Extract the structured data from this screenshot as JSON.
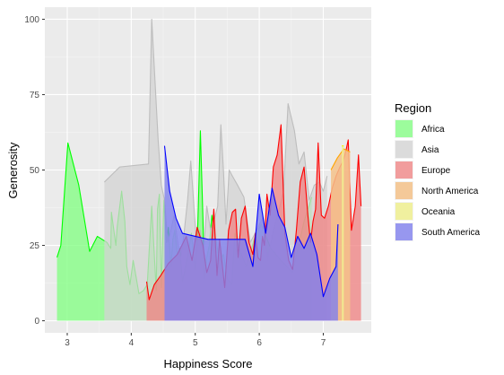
{
  "chart_data": {
    "type": "area",
    "xlabel": "Happiness Score",
    "ylabel": "Generosity",
    "xlim": [
      2.65,
      7.75
    ],
    "ylim": [
      -4,
      104
    ],
    "xticks": [
      3,
      4,
      5,
      6,
      7
    ],
    "yticks": [
      0,
      25,
      50,
      75,
      100
    ],
    "grid": true,
    "legend": {
      "title": "Region",
      "position": "right"
    },
    "series": [
      {
        "name": "Africa",
        "line_color": "#00ff00",
        "fill_color": "#7fff7f",
        "fill_opacity": 0.75,
        "x": [
          2.84,
          2.9,
          3.01,
          3.18,
          3.35,
          3.47,
          3.62,
          3.68,
          3.69,
          3.76,
          3.78,
          3.85,
          3.9,
          3.93,
          3.98,
          4.03,
          4.08,
          4.12,
          4.19,
          4.25,
          4.32,
          4.39,
          4.41,
          4.44,
          4.47,
          4.51,
          4.55,
          4.58,
          4.62,
          4.65,
          4.68,
          4.72,
          4.76,
          4.8,
          4.87,
          4.94,
          5.0,
          5.04,
          5.08,
          5.12,
          5.14,
          5.17,
          5.22,
          5.26,
          5.32,
          5.38,
          5.44,
          5.5,
          5.57,
          5.62,
          5.7,
          5.8,
          5.92,
          6.03,
          6.18,
          6.34,
          6.52,
          6.7,
          6.82
        ],
        "y": [
          21,
          25,
          59,
          45,
          23,
          28,
          26,
          24,
          36,
          25,
          31,
          43,
          33,
          18,
          12,
          20,
          14,
          9,
          10,
          12,
          38,
          10,
          37,
          42,
          11,
          40,
          26,
          31,
          18,
          27,
          30,
          22,
          24,
          13,
          20,
          29,
          17,
          32,
          63,
          34,
          14,
          20,
          25,
          35,
          27,
          20,
          22,
          14,
          12,
          29,
          23,
          18,
          27,
          32,
          24,
          20,
          16,
          33,
          41
        ]
      },
      {
        "name": "Asia",
        "line_color": "#bdbdbd",
        "fill_color": "#d3d3d3",
        "fill_opacity": 0.75,
        "x": [
          3.58,
          3.82,
          4.27,
          4.32,
          4.37,
          4.42,
          4.47,
          4.52,
          4.57,
          4.62,
          4.67,
          4.72,
          4.77,
          4.82,
          4.88,
          4.93,
          4.98,
          5.03,
          5.08,
          5.12,
          5.18,
          5.24,
          5.29,
          5.35,
          5.4,
          5.44,
          5.48,
          5.53,
          5.58,
          5.66,
          5.76,
          5.86,
          5.96,
          6.05,
          6.13,
          6.22,
          6.3,
          6.38,
          6.45,
          6.55,
          6.62,
          6.7,
          6.78,
          6.86,
          6.94,
          7.0,
          7.06
        ],
        "y": [
          46,
          51,
          52,
          100,
          80,
          60,
          45,
          40,
          26,
          30,
          35,
          27,
          20,
          28,
          40,
          53,
          38,
          22,
          30,
          20,
          38,
          30,
          33,
          38,
          65,
          50,
          32,
          50,
          48,
          45,
          41,
          26,
          30,
          34,
          20,
          30,
          36,
          43,
          72,
          63,
          52,
          56,
          40,
          45,
          46,
          43,
          48
        ]
      },
      {
        "name": "Europe",
        "line_color": "#ff0000",
        "fill_color": "#f08080",
        "fill_opacity": 0.75,
        "x": [
          4.24,
          4.28,
          4.36,
          4.46,
          4.58,
          4.72,
          4.86,
          4.95,
          5.03,
          5.12,
          5.18,
          5.24,
          5.29,
          5.34,
          5.38,
          5.42,
          5.46,
          5.52,
          5.58,
          5.63,
          5.67,
          5.72,
          5.78,
          5.84,
          5.9,
          5.94,
          5.98,
          6.02,
          6.05,
          6.08,
          6.12,
          6.17,
          6.22,
          6.28,
          6.34,
          6.4,
          6.46,
          6.52,
          6.58,
          6.64,
          6.7,
          6.76,
          6.8,
          6.84,
          6.88,
          6.92,
          6.97,
          7.02,
          7.08,
          7.14,
          7.2,
          7.26,
          7.31,
          7.35,
          7.39,
          7.44,
          7.5,
          7.55,
          7.59
        ],
        "y": [
          13,
          7,
          12,
          15,
          19,
          22,
          28,
          20,
          31,
          25,
          16,
          20,
          37,
          15,
          27,
          19,
          11,
          30,
          36,
          37,
          21,
          34,
          38,
          26,
          22,
          29,
          21,
          20,
          28,
          25,
          42,
          35,
          51,
          55,
          65,
          29,
          20,
          17,
          30,
          46,
          51,
          35,
          26,
          33,
          37,
          59,
          35,
          34,
          38,
          44,
          48,
          51,
          53,
          56,
          60,
          30,
          38,
          55,
          38
        ]
      },
      {
        "name": "North America",
        "line_color": "#ffa500",
        "fill_color": "#f4c28a",
        "fill_opacity": 0.85,
        "x": [
          7.12,
          7.22,
          7.32,
          7.42
        ],
        "y": [
          50,
          54,
          57,
          56
        ]
      },
      {
        "name": "Oceania",
        "line_color": "#f0f000",
        "fill_color": "#f0f090",
        "fill_opacity": 0.85,
        "x": [
          7.29,
          7.32
        ],
        "y": [
          58,
          58
        ]
      },
      {
        "name": "South America",
        "line_color": "#0000ff",
        "fill_color": "#8080ee",
        "fill_opacity": 0.8,
        "x": [
          4.52,
          4.6,
          4.7,
          4.8,
          5.2,
          5.78,
          5.9,
          6.0,
          6.1,
          6.2,
          6.3,
          6.4,
          6.5,
          6.6,
          6.7,
          6.8,
          6.9,
          7.0,
          7.1,
          7.2,
          7.23
        ],
        "y": [
          58,
          43,
          34,
          29,
          27,
          27,
          18,
          42,
          29,
          44,
          35,
          31,
          21,
          28,
          24,
          29,
          22,
          8,
          14,
          18,
          32
        ]
      }
    ]
  }
}
